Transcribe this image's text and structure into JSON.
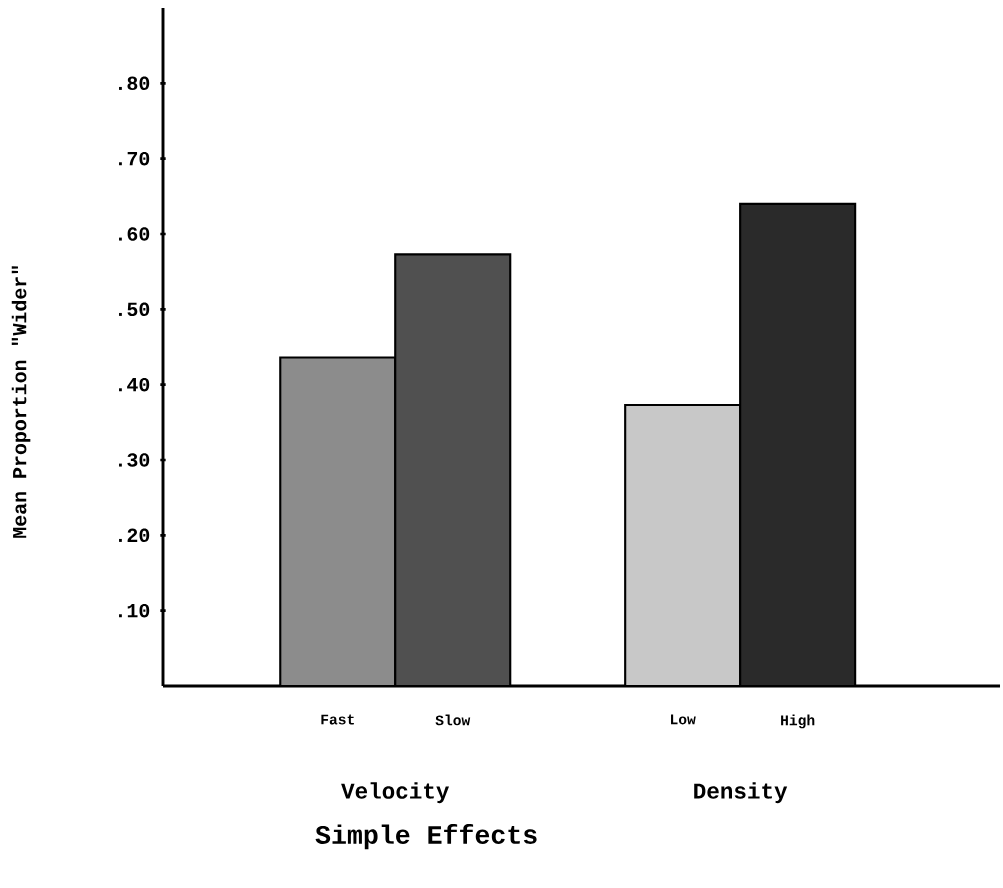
{
  "chart_data": {
    "type": "bar",
    "xlabel": "Simple Effects",
    "ylabel": "Mean Proportion \"Wider\"",
    "categories": [
      "Fast",
      "Slow",
      null,
      "Low",
      "High"
    ],
    "values": [
      0.436,
      0.573,
      null,
      0.373,
      0.64
    ],
    "colors": [
      "#8c8c8c",
      "#505050",
      "#c8c8c8",
      "#c8c8c8",
      "#2a2a2a"
    ],
    "annotations": [
      "Velocity",
      "Density"
    ],
    "ylim": [
      0,
      0.9
    ],
    "yticks": [
      {
        "value": 0.1,
        "label": ".10"
      },
      {
        "value": 0.2,
        "label": ".20"
      },
      {
        "value": 0.3,
        "label": ".30"
      },
      {
        "value": 0.4,
        "label": ".40"
      },
      {
        "value": 0.5,
        "label": ".50"
      },
      {
        "value": 0.6,
        "label": ".60"
      },
      {
        "value": 0.7,
        "label": ".70"
      },
      {
        "value": 0.8,
        "label": ".80"
      }
    ],
    "grid": false
  }
}
